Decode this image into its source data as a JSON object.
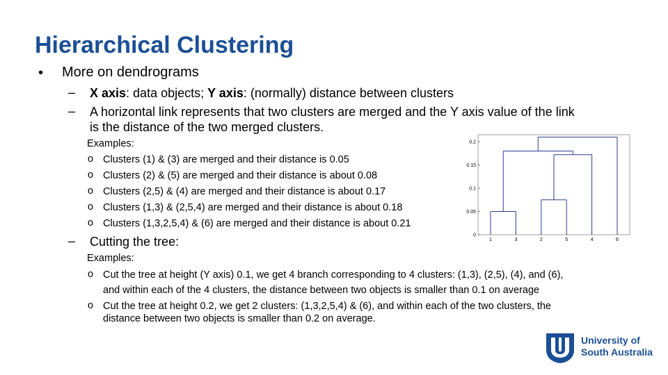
{
  "slide": {
    "title": "Hierarchical Clustering",
    "bullet1": "More on dendrograms",
    "sub1": {
      "x_label": "X axis",
      "x_text": ": data objects; ",
      "y_label": "Y axis",
      "y_text": ": (normally) distance between clusters"
    },
    "sub2_line1": "A horizontal link represents that two clusters are merged and the Y axis value of the link",
    "sub2_line2": "is the distance of the two merged clusters.",
    "examples_label": "Examples:",
    "examples": [
      "Clusters (1) & (3) are merged and their distance is 0.05",
      "Clusters (2) & (5) are merged and their distance is about 0.08",
      "Clusters (2,5) & (4) are merged and their distance is about 0.17",
      "Clusters (1,3) & (2,5,4) are merged and their distance is about 0.18",
      "Clusters (1,3,2,5,4) & (6) are merged and their distance is about 0.21"
    ],
    "sub3": "Cutting the tree:",
    "examples2_label": "Examples:",
    "cut1_line1": "Cut the tree at height (Y axis) 0.1, we get 4 branch corresponding to 4 clusters: (1,3), (2,5), (4), and (6),",
    "cut1_line2": "and within each of the 4 clusters, the distance between two objects is smaller than 0.1 on average",
    "cut2_line1": "Cut the tree at height 0.2, we get 2 clusters: (1,3,2,5,4) & (6),  and within each of the two clusters, the",
    "cut2_line2": "distance between two objects is smaller than 0.2 on average."
  },
  "logo": {
    "line1": "University of",
    "line2": "South Australia",
    "color": "#1b4f95"
  },
  "chart_data": {
    "type": "dendrogram",
    "leaf_order": [
      "1",
      "3",
      "2",
      "5",
      "4",
      "6"
    ],
    "yticks": [
      "0",
      "0.05",
      "0.1",
      "0.15",
      "0.2"
    ],
    "ylim": [
      0,
      0.215
    ],
    "merges": [
      {
        "clusters": [
          "1",
          "3"
        ],
        "height": 0.05
      },
      {
        "clusters": [
          "2",
          "5"
        ],
        "height": 0.075
      },
      {
        "clusters": [
          "2,5",
          "4"
        ],
        "height": 0.172
      },
      {
        "clusters": [
          "1,3",
          "2,5,4"
        ],
        "height": 0.18
      },
      {
        "clusters": [
          "1,3,2,5,4",
          "6"
        ],
        "height": 0.21
      }
    ],
    "line_color": "#2b3a8f"
  }
}
